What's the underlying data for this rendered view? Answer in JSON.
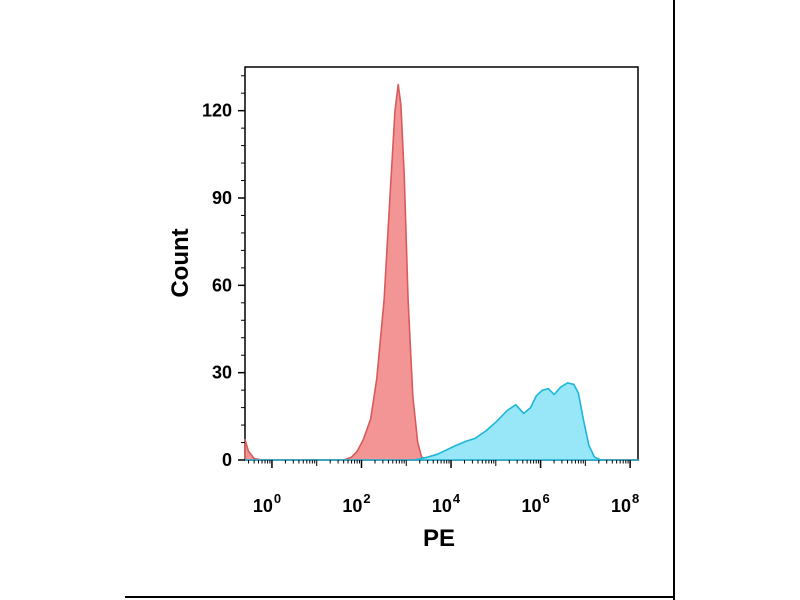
{
  "chart_data": {
    "type": "area",
    "xlabel": "PE",
    "ylabel": "Count",
    "x_scale": "log10",
    "xlim": [
      0.25,
      150000000
    ],
    "ylim": [
      0,
      135
    ],
    "x_ticks": [
      {
        "value": 1,
        "base": "10",
        "exp": "0"
      },
      {
        "value": 100,
        "base": "10",
        "exp": "2"
      },
      {
        "value": 10000,
        "base": "10",
        "exp": "4"
      },
      {
        "value": 1000000,
        "base": "10",
        "exp": "6"
      },
      {
        "value": 100000000,
        "base": "10",
        "exp": "8"
      }
    ],
    "y_ticks": [
      0,
      30,
      60,
      90,
      120
    ],
    "grid": false,
    "series": [
      {
        "color": "#f28282",
        "stroke": "#d95a5a",
        "points": [
          [
            0.25,
            7
          ],
          [
            0.3,
            3
          ],
          [
            0.4,
            0.5
          ],
          [
            0.6,
            0
          ],
          [
            40,
            0
          ],
          [
            60,
            1
          ],
          [
            80,
            3
          ],
          [
            110,
            7
          ],
          [
            160,
            14
          ],
          [
            220,
            28
          ],
          [
            320,
            55
          ],
          [
            430,
            90
          ],
          [
            560,
            120
          ],
          [
            660,
            129
          ],
          [
            760,
            122
          ],
          [
            900,
            98
          ],
          [
            1100,
            55
          ],
          [
            1400,
            22
          ],
          [
            1800,
            6
          ],
          [
            2200,
            1
          ],
          [
            3000,
            0
          ],
          [
            150000000,
            0
          ]
        ]
      },
      {
        "color": "#86e3f7",
        "stroke": "#1db6d8",
        "points": [
          [
            0.25,
            0
          ],
          [
            1500,
            0
          ],
          [
            3000,
            1
          ],
          [
            5000,
            2
          ],
          [
            8000,
            3.5
          ],
          [
            13000,
            5
          ],
          [
            22000,
            6.5
          ],
          [
            35000,
            7.5
          ],
          [
            60000,
            10
          ],
          [
            100000,
            13
          ],
          [
            180000,
            17
          ],
          [
            280000,
            19
          ],
          [
            420000,
            16
          ],
          [
            600000,
            18
          ],
          [
            800000,
            22
          ],
          [
            1100000,
            24
          ],
          [
            1500000,
            24.5
          ],
          [
            2000000,
            22.5
          ],
          [
            2800000,
            25
          ],
          [
            4000000,
            26.5
          ],
          [
            5500000,
            26
          ],
          [
            7000000,
            23
          ],
          [
            9000000,
            14
          ],
          [
            12000000,
            5
          ],
          [
            16000000,
            1
          ],
          [
            22000000,
            0
          ],
          [
            150000000,
            0
          ]
        ]
      }
    ]
  }
}
